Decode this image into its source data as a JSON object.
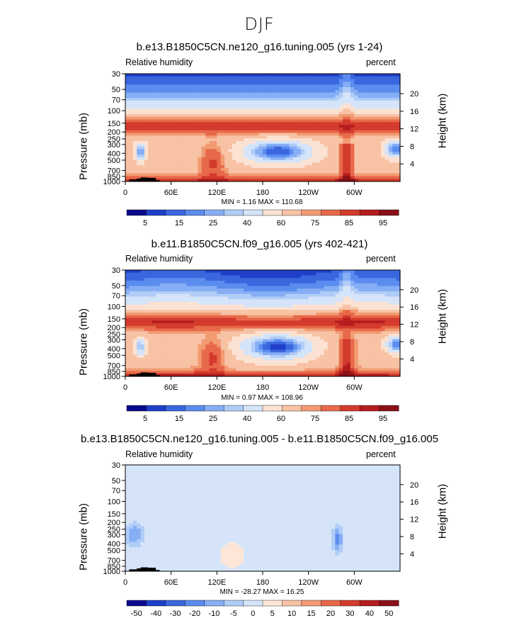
{
  "page_title": "DJF",
  "panels": [
    {
      "title": "b.e13.B1850C5CN.ne120_g16.tuning.005 (yrs 1-24)",
      "left_label": "Relative humidity",
      "right_label": "percent",
      "minmax": "MIN =    1.16   MAX = 110.68",
      "colorbar_labels": [
        "5",
        "15",
        "25",
        "40",
        "60",
        "75",
        "85",
        "95"
      ]
    },
    {
      "title": "b.e11.B1850C5CN.f09_g16.005 (yrs 402-421)",
      "left_label": "Relative humidity",
      "right_label": "percent",
      "minmax": "MIN =    0.97   MAX = 108.96",
      "colorbar_labels": [
        "5",
        "15",
        "25",
        "40",
        "60",
        "75",
        "85",
        "95"
      ]
    },
    {
      "title": "b.e13.B1850C5CN.ne120_g16.tuning.005 - b.e11.B1850C5CN.f09_g16.005",
      "left_label": "Relative humidity",
      "right_label": "percent",
      "minmax": "MIN = -28.27   MAX =  16.25",
      "colorbar_labels": [
        "-50",
        "-40",
        "-30",
        "-20",
        "-10",
        "-5",
        "0",
        "5",
        "10",
        "15",
        "20",
        "30",
        "40",
        "50"
      ]
    }
  ],
  "axes": {
    "ylabel": "Pressure (mb)",
    "ylabel_right": "Height (km)",
    "pressure_ticks": [
      "30",
      "50",
      "70",
      "100",
      "150",
      "200",
      "250",
      "300",
      "400",
      "500",
      "700",
      "850",
      "1000"
    ],
    "pressure_tick_values": [
      30,
      50,
      70,
      100,
      150,
      200,
      250,
      300,
      400,
      500,
      700,
      850,
      1000
    ],
    "height_ticks": [
      "20",
      "16",
      "12",
      "8",
      "4"
    ],
    "height_tick_values": [
      20,
      16,
      12,
      8,
      4
    ],
    "lon_ticks": [
      "0",
      "60E",
      "120E",
      "180",
      "120W",
      "60W"
    ],
    "lon_tick_values": [
      0,
      60,
      120,
      180,
      240,
      300
    ]
  },
  "colors": {
    "abs_scale": [
      "#0a0a8c",
      "#1f3fc8",
      "#3a66de",
      "#5b8cef",
      "#86aef5",
      "#b0cdf8",
      "#d5e4f9",
      "#fbe2d2",
      "#f8c2a4",
      "#f29b73",
      "#e8694a",
      "#d33b2c",
      "#b51d1f",
      "#8a0f17"
    ],
    "diff_scale": [
      "#0a0a8c",
      "#1f3fc8",
      "#3a66de",
      "#5b8cef",
      "#86aef5",
      "#b0cdf8",
      "#d5e4f9",
      "#fde6d8",
      "#f8c2a4",
      "#f29b73",
      "#e8694a",
      "#d33b2c",
      "#b51d1f",
      "#8a0f17"
    ]
  },
  "chart_data": [
    {
      "type": "heatmap",
      "title": "b.e13.B1850C5CN.ne120_g16.tuning.005 (yrs 1-24)",
      "subtitle": "DJF",
      "variable": "Relative humidity",
      "units": "percent",
      "xlabel": "",
      "ylabel": "Pressure (mb)",
      "x_range": [
        0,
        360
      ],
      "y_range": [
        1000,
        30
      ],
      "min": 1.16,
      "max": 110.68,
      "contour_levels": [
        5,
        10,
        15,
        20,
        25,
        30,
        40,
        50,
        60,
        65,
        70,
        75,
        80,
        85,
        90,
        95
      ]
    },
    {
      "type": "heatmap",
      "title": "b.e11.B1850C5CN.f09_g16.005 (yrs 402-421)",
      "subtitle": "DJF",
      "variable": "Relative humidity",
      "units": "percent",
      "xlabel": "",
      "ylabel": "Pressure (mb)",
      "x_range": [
        0,
        360
      ],
      "y_range": [
        1000,
        30
      ],
      "min": 0.97,
      "max": 108.96,
      "contour_levels": [
        5,
        10,
        15,
        20,
        25,
        30,
        40,
        50,
        60,
        65,
        70,
        75,
        80,
        85,
        90,
        95
      ]
    },
    {
      "type": "heatmap",
      "title": "b.e13.B1850C5CN.ne120_g16.tuning.005 - b.e11.B1850C5CN.f09_g16.005",
      "subtitle": "DJF",
      "variable": "Relative humidity",
      "units": "percent",
      "xlabel": "",
      "ylabel": "Pressure (mb)",
      "x_range": [
        0,
        360
      ],
      "y_range": [
        1000,
        30
      ],
      "min": -28.27,
      "max": 16.25,
      "contour_levels": [
        -50,
        -40,
        -30,
        -20,
        -10,
        -5,
        0,
        5,
        10,
        15,
        20,
        30,
        40,
        50
      ]
    }
  ]
}
